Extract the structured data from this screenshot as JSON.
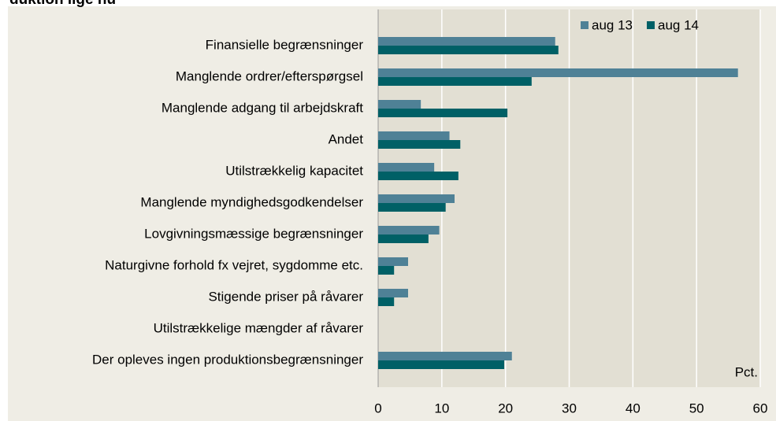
{
  "chart_data": {
    "type": "bar",
    "orientation": "horizontal",
    "title": "duktion lige nu",
    "categories": [
      "Finansielle begrænsninger",
      "Manglende ordrer/efterspørgsel",
      "Manglende adgang til arbejdskraft",
      "Andet",
      "Utilstrækkelig kapacitet",
      "Manglende myndighedsgodkendelser",
      "Lovgivningsmæssige begrænsninger",
      "Naturgivne forhold fx vejret, sygdomme etc.",
      "Stigende priser på råvarer",
      "Utilstrækkelige mængder af råvarer",
      "Der opleves ingen produktionsbegrænsninger"
    ],
    "series": [
      {
        "name": "aug 13",
        "color": "#4f8196",
        "values": [
          27.8,
          56.5,
          6.7,
          11.2,
          8.8,
          12.0,
          9.6,
          4.7,
          4.7,
          0,
          21.0
        ]
      },
      {
        "name": "aug 14",
        "color": "#006066",
        "values": [
          28.3,
          24.1,
          20.3,
          12.9,
          12.6,
          10.6,
          7.9,
          2.5,
          2.5,
          0,
          19.8
        ]
      }
    ],
    "xlim": [
      0,
      60
    ],
    "xticks": [
      0,
      10,
      20,
      30,
      40,
      50,
      60
    ],
    "grid": true,
    "legend": "top-right",
    "annotation": "Pct."
  }
}
